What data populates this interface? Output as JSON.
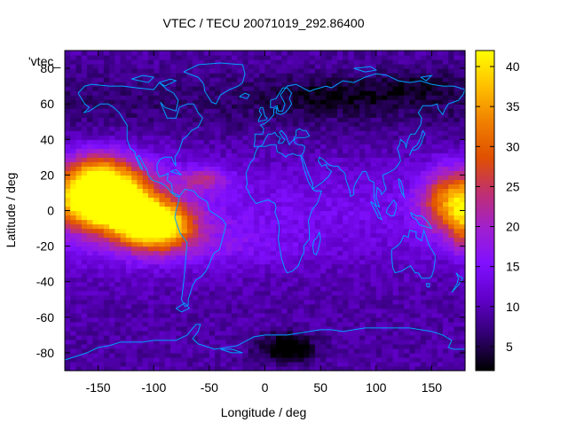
{
  "chart_data": {
    "type": "heatmap",
    "title": "VTEC / TECU 20071019_292.86400",
    "xlabel": "Longitude / deg",
    "ylabel": "Latitude / deg",
    "legend_entry": "'vtec_",
    "xlim": [
      -180,
      180
    ],
    "ylim": [
      -90,
      90
    ],
    "xticks": [
      -150,
      -100,
      -50,
      0,
      50,
      100,
      150
    ],
    "yticks": [
      -80,
      -60,
      -40,
      -20,
      0,
      20,
      40,
      60,
      80
    ],
    "xtick_labels": [
      "-150",
      "-100",
      "-50",
      "0",
      "50",
      "100",
      "150"
    ],
    "ytick_labels": [
      "-80",
      "-60",
      "-40",
      "-20",
      "0",
      "20",
      "40",
      "60",
      "80"
    ],
    "colorbar": {
      "range": [
        2,
        42
      ],
      "ticks": [
        5,
        10,
        15,
        20,
        25,
        30,
        35,
        40
      ],
      "tick_labels": [
        "5",
        "10",
        "15",
        "20",
        "25",
        "30",
        "35",
        "40"
      ],
      "colormap": [
        "#000000",
        "#300070",
        "#6000c8",
        "#8010ff",
        "#a020d0",
        "#c03070",
        "#e05000",
        "#f08000",
        "#ffc000",
        "#ffff00"
      ]
    },
    "grid": false,
    "coastline_color": "#00a0ff",
    "anomaly_centers": [
      {
        "lon": -145,
        "lat": 5,
        "vtec": 38,
        "slon": 40,
        "slat": 14
      },
      {
        "lon": -100,
        "lat": -8,
        "vtec": 34,
        "slon": 32,
        "slat": 12
      },
      {
        "lon": -150,
        "lat": 20,
        "vtec": 20,
        "slon": 35,
        "slat": 14
      },
      {
        "lon": 168,
        "lat": 5,
        "vtec": 22,
        "slon": 25,
        "slat": 18
      },
      {
        "lon": 178,
        "lat": -5,
        "vtec": 12,
        "slon": 10,
        "slat": 20
      },
      {
        "lon": -55,
        "lat": 18,
        "vtec": 10,
        "slon": 20,
        "slat": 6
      },
      {
        "lon": 20,
        "lat": -77,
        "vtec": -10,
        "slon": 25,
        "slat": 8
      },
      {
        "lon": 60,
        "lat": 65,
        "vtec": -4,
        "slon": 60,
        "slat": 10
      },
      {
        "lon": 140,
        "lat": 70,
        "vtec": -3,
        "slon": 40,
        "slat": 10
      }
    ]
  }
}
